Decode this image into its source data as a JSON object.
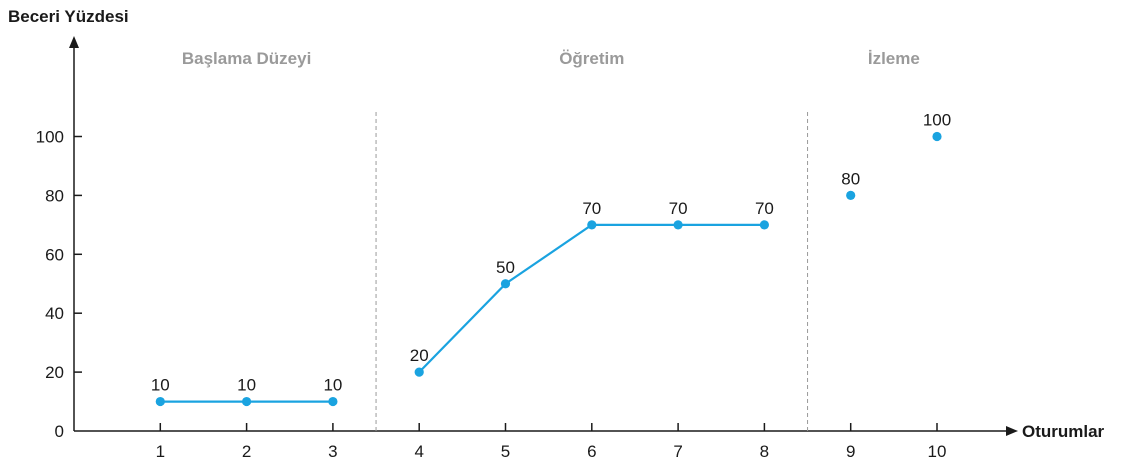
{
  "chart_data": {
    "type": "line",
    "ylabel": "Beceri Yüzdesi",
    "xlabel": "Oturumlar",
    "x_ticks": [
      "1",
      "2",
      "3",
      "4",
      "5",
      "6",
      "7",
      "8",
      "9",
      "10"
    ],
    "y_ticks": [
      "0",
      "20",
      "40",
      "60",
      "80",
      "100"
    ],
    "ylim": [
      0,
      100
    ],
    "xlim": [
      0,
      10
    ],
    "phases": [
      {
        "label": "Başlama Düzeyi",
        "sessions": [
          1,
          3
        ]
      },
      {
        "label": "Öğretim",
        "sessions": [
          4,
          8
        ]
      },
      {
        "label": "İzleme",
        "sessions": [
          9,
          10
        ]
      }
    ],
    "phase_dividers": [
      3.5,
      8.5
    ],
    "series": [
      {
        "connected": true,
        "points": [
          {
            "x": 1,
            "y": 10,
            "label": "10"
          },
          {
            "x": 2,
            "y": 10,
            "label": "10"
          },
          {
            "x": 3,
            "y": 10,
            "label": "10"
          }
        ]
      },
      {
        "connected": true,
        "points": [
          {
            "x": 4,
            "y": 20,
            "label": "20"
          },
          {
            "x": 5,
            "y": 50,
            "label": "50"
          },
          {
            "x": 6,
            "y": 70,
            "label": "70"
          },
          {
            "x": 7,
            "y": 70,
            "label": "70"
          },
          {
            "x": 8,
            "y": 70,
            "label": "70"
          }
        ]
      },
      {
        "connected": false,
        "points": [
          {
            "x": 9,
            "y": 80,
            "label": "80"
          },
          {
            "x": 10,
            "y": 100,
            "label": "100"
          }
        ]
      }
    ],
    "colors": {
      "line": "#1aa3e0",
      "axis": "#1a1a1a",
      "divider": "#9a9a9a",
      "phase_label": "#9a9a9a"
    },
    "grid": false
  }
}
